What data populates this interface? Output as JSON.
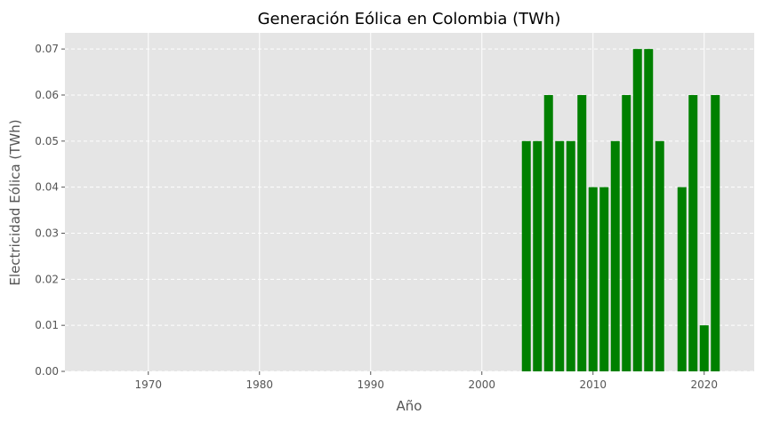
{
  "chart_data": {
    "type": "bar",
    "title": "Generación Eólica en Colombia (TWh)",
    "xlabel": "Año",
    "ylabel": "Electricidad Eólica (TWh)",
    "x": [
      2004,
      2005,
      2006,
      2007,
      2008,
      2009,
      2010,
      2011,
      2012,
      2013,
      2014,
      2015,
      2016,
      2017,
      2018,
      2019,
      2020,
      2021
    ],
    "values": [
      0.05,
      0.05,
      0.06,
      0.05,
      0.05,
      0.06,
      0.04,
      0.04,
      0.05,
      0.06,
      0.07,
      0.07,
      0.05,
      0.0,
      0.04,
      0.06,
      0.01,
      0.06
    ],
    "xlim": [
      1962.5,
      2024.5
    ],
    "ylim": [
      0,
      0.0735
    ],
    "xticks": [
      "1970",
      "1980",
      "1990",
      "2000",
      "2010",
      "2020"
    ],
    "yticks": [
      "0.00",
      "0.01",
      "0.02",
      "0.03",
      "0.04",
      "0.05",
      "0.06",
      "0.07"
    ],
    "grid": true,
    "bar_color": "#008000",
    "background_color": "#e5e5e5"
  }
}
